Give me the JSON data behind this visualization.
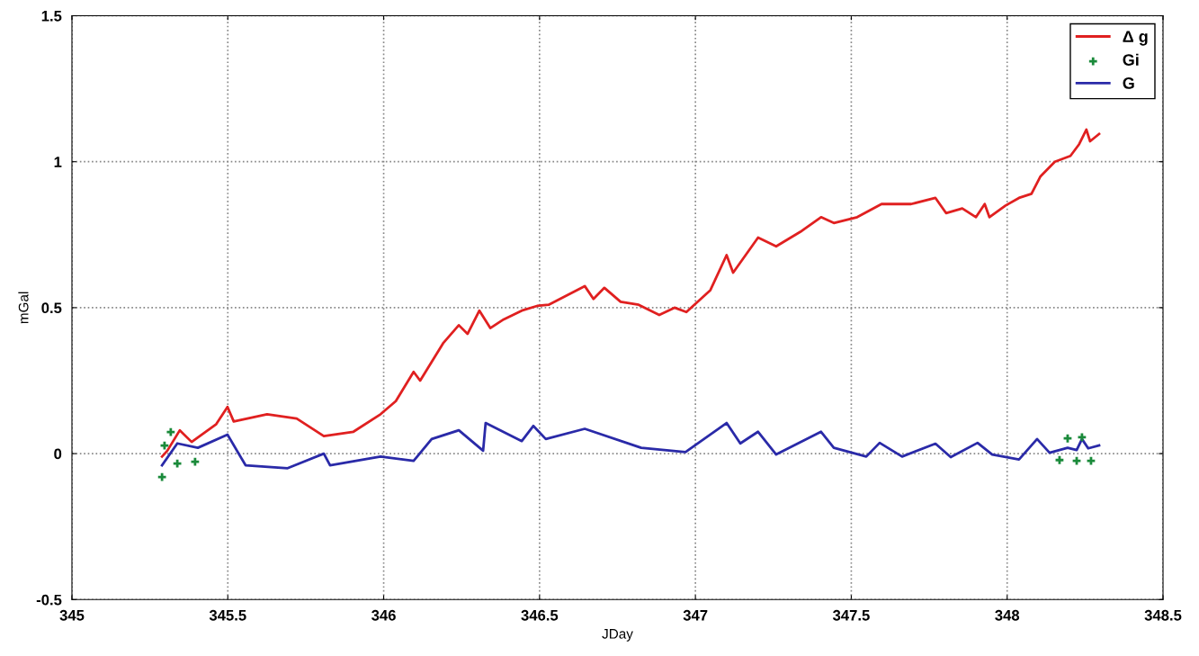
{
  "chart_data": {
    "type": "line",
    "xlabel": "JDay",
    "ylabel": "mGal",
    "xlim": [
      345,
      348.5
    ],
    "xticks": [
      345,
      345.5,
      346,
      346.5,
      347,
      347.5,
      348,
      348.5
    ],
    "ylim": [
      -0.5,
      1.5
    ],
    "yticks": [
      -0.5,
      0,
      0.5,
      1,
      1.5
    ],
    "grid": true,
    "legend": "top right",
    "series": [
      {
        "name": "Δ g",
        "color": "#e02020",
        "line_style": "solid",
        "x": [
          345.289,
          345.306,
          345.346,
          345.384,
          345.462,
          345.499,
          345.519,
          345.626,
          345.721,
          345.808,
          345.903,
          345.99,
          346.039,
          346.096,
          346.117,
          346.192,
          346.241,
          346.269,
          346.307,
          346.342,
          346.385,
          346.443,
          346.492,
          346.529,
          346.645,
          346.673,
          346.708,
          346.76,
          346.818,
          346.884,
          346.933,
          346.971,
          347.048,
          347.1,
          347.121,
          347.201,
          347.259,
          347.337,
          347.403,
          347.444,
          347.519,
          347.597,
          347.692,
          347.77,
          347.804,
          347.856,
          347.9,
          347.928,
          347.943,
          347.995,
          348.038,
          348.078,
          348.107,
          348.153,
          348.203,
          348.231,
          348.254,
          348.266,
          348.295
        ],
        "values": [
          -0.01,
          0.01,
          0.08,
          0.04,
          0.1,
          0.16,
          0.11,
          0.135,
          0.12,
          0.06,
          0.075,
          0.135,
          0.18,
          0.28,
          0.25,
          0.38,
          0.44,
          0.41,
          0.49,
          0.43,
          0.46,
          0.49,
          0.506,
          0.51,
          0.574,
          0.53,
          0.568,
          0.52,
          0.51,
          0.475,
          0.5,
          0.485,
          0.56,
          0.68,
          0.62,
          0.74,
          0.71,
          0.76,
          0.81,
          0.79,
          0.81,
          0.855,
          0.855,
          0.876,
          0.824,
          0.84,
          0.81,
          0.855,
          0.81,
          0.85,
          0.876,
          0.89,
          0.95,
          1.0,
          1.02,
          1.06,
          1.11,
          1.07,
          1.095
        ]
      },
      {
        "name": "Gi",
        "type": "scatter",
        "color": "#1a8a3a",
        "marker": "cross",
        "x": [
          345.289,
          345.297,
          345.317,
          345.338,
          345.395,
          348.168,
          348.194,
          348.223,
          348.24,
          348.269
        ],
        "values": [
          -0.08,
          0.028,
          0.074,
          -0.034,
          -0.028,
          -0.022,
          0.052,
          -0.025,
          0.056,
          -0.025
        ]
      },
      {
        "name": "G",
        "color": "#2a2aa8",
        "line_style": "solid",
        "x": [
          345.289,
          345.338,
          345.404,
          345.499,
          345.557,
          345.692,
          345.808,
          345.828,
          345.99,
          346.096,
          346.154,
          346.241,
          346.319,
          346.327,
          346.443,
          346.48,
          346.52,
          346.645,
          346.826,
          346.968,
          347.1,
          347.144,
          347.201,
          347.259,
          347.403,
          347.444,
          347.548,
          347.591,
          347.663,
          347.77,
          347.819,
          347.905,
          347.952,
          348.038,
          348.096,
          348.136,
          348.194,
          348.223,
          348.24,
          348.26,
          348.295
        ],
        "values": [
          -0.04,
          0.035,
          0.02,
          0.065,
          -0.04,
          -0.05,
          0.0,
          -0.04,
          -0.01,
          -0.025,
          0.05,
          0.08,
          0.01,
          0.105,
          0.043,
          0.095,
          0.05,
          0.085,
          0.02,
          0.005,
          0.105,
          0.035,
          0.075,
          -0.003,
          0.075,
          0.02,
          -0.01,
          0.037,
          -0.01,
          0.034,
          -0.012,
          0.037,
          -0.003,
          -0.02,
          0.05,
          0.003,
          0.02,
          0.012,
          0.05,
          0.018,
          0.028
        ]
      }
    ]
  }
}
